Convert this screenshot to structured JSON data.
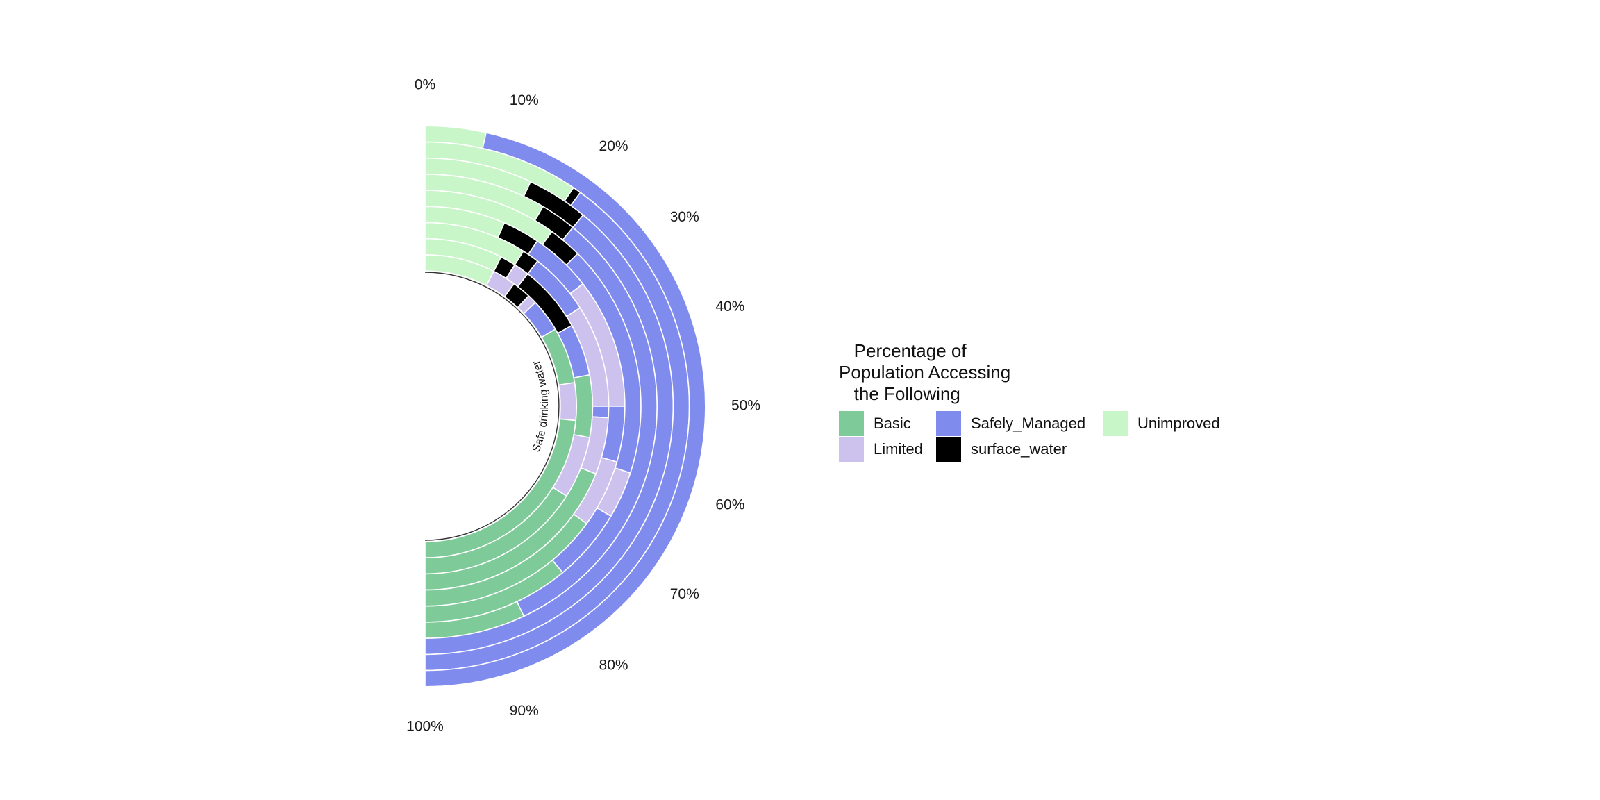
{
  "colors": {
    "Basic": "#7ECA99",
    "Limited": "#CDC1EE",
    "Safely_Managed": "#808BEE",
    "surface_water": "#000000",
    "Unimproved": "#C8F6C9"
  },
  "legend": {
    "title": "   Percentage of\nPopulation Accessing\n   the Following",
    "items": [
      {
        "label": "Basic",
        "key": "Basic"
      },
      {
        "label": "Limited",
        "key": "Limited"
      },
      {
        "label": "Safely_Managed",
        "key": "Safely_Managed"
      },
      {
        "label": "surface_water",
        "key": "surface_water"
      },
      {
        "label": "Unimproved",
        "key": "Unimproved"
      }
    ]
  },
  "chart_data": {
    "type": "bar",
    "coord": "polar",
    "category_label": "Safe drinking water",
    "theta_ticks": [
      "0%",
      "10%",
      "20%",
      "30%",
      "40%",
      "50%",
      "60%",
      "70%",
      "80%",
      "90%",
      "100%"
    ],
    "rings": [
      {
        "segments": [
          [
            "Unimproved",
            15
          ],
          [
            "Limited",
            5
          ],
          [
            "surface_water",
            4
          ],
          [
            "Limited",
            2
          ],
          [
            "Safely_Managed",
            7
          ],
          [
            "Basic",
            12
          ],
          [
            "Limited",
            8
          ],
          [
            "Basic",
            47
          ]
        ]
      },
      {
        "segments": [
          [
            "Unimproved",
            15
          ],
          [
            "surface_water",
            3
          ],
          [
            "Limited",
            3
          ],
          [
            "surface_water",
            13
          ],
          [
            "Safely_Managed",
            10
          ],
          [
            "Basic",
            12
          ],
          [
            "Limited",
            12
          ],
          [
            "Basic",
            32
          ]
        ]
      },
      {
        "segments": [
          [
            "Unimproved",
            18
          ],
          [
            "surface_water",
            3
          ],
          [
            "Safely_Managed",
            11
          ],
          [
            "Limited",
            18
          ],
          [
            "Safely_Managed",
            2
          ],
          [
            "Limited",
            10
          ],
          [
            "Basic",
            38
          ]
        ]
      },
      {
        "segments": [
          [
            "Unimproved",
            13
          ],
          [
            "surface_water",
            6
          ],
          [
            "Safely_Managed",
            10
          ],
          [
            "Limited",
            21
          ],
          [
            "Safely_Managed",
            9
          ],
          [
            "Limited",
            11
          ],
          [
            "Basic",
            30
          ]
        ]
      },
      {
        "segments": [
          [
            "Unimproved",
            20
          ],
          [
            "surface_water",
            5
          ],
          [
            "Safely_Managed",
            35
          ],
          [
            "Limited",
            7
          ],
          [
            "Safely_Managed",
            11
          ],
          [
            "Basic",
            22
          ]
        ]
      },
      {
        "segments": [
          [
            "Unimproved",
            17
          ],
          [
            "surface_water",
            5
          ],
          [
            "Safely_Managed",
            64
          ],
          [
            "Basic",
            14
          ]
        ]
      },
      {
        "segments": [
          [
            "Unimproved",
            14
          ],
          [
            "surface_water",
            8
          ],
          [
            "Safely_Managed",
            78
          ]
        ]
      },
      {
        "segments": [
          [
            "Unimproved",
            19
          ],
          [
            "surface_water",
            1
          ],
          [
            "Safely_Managed",
            80
          ]
        ]
      },
      {
        "segments": [
          [
            "Unimproved",
            7
          ],
          [
            "Safely_Managed",
            93
          ]
        ]
      }
    ]
  }
}
